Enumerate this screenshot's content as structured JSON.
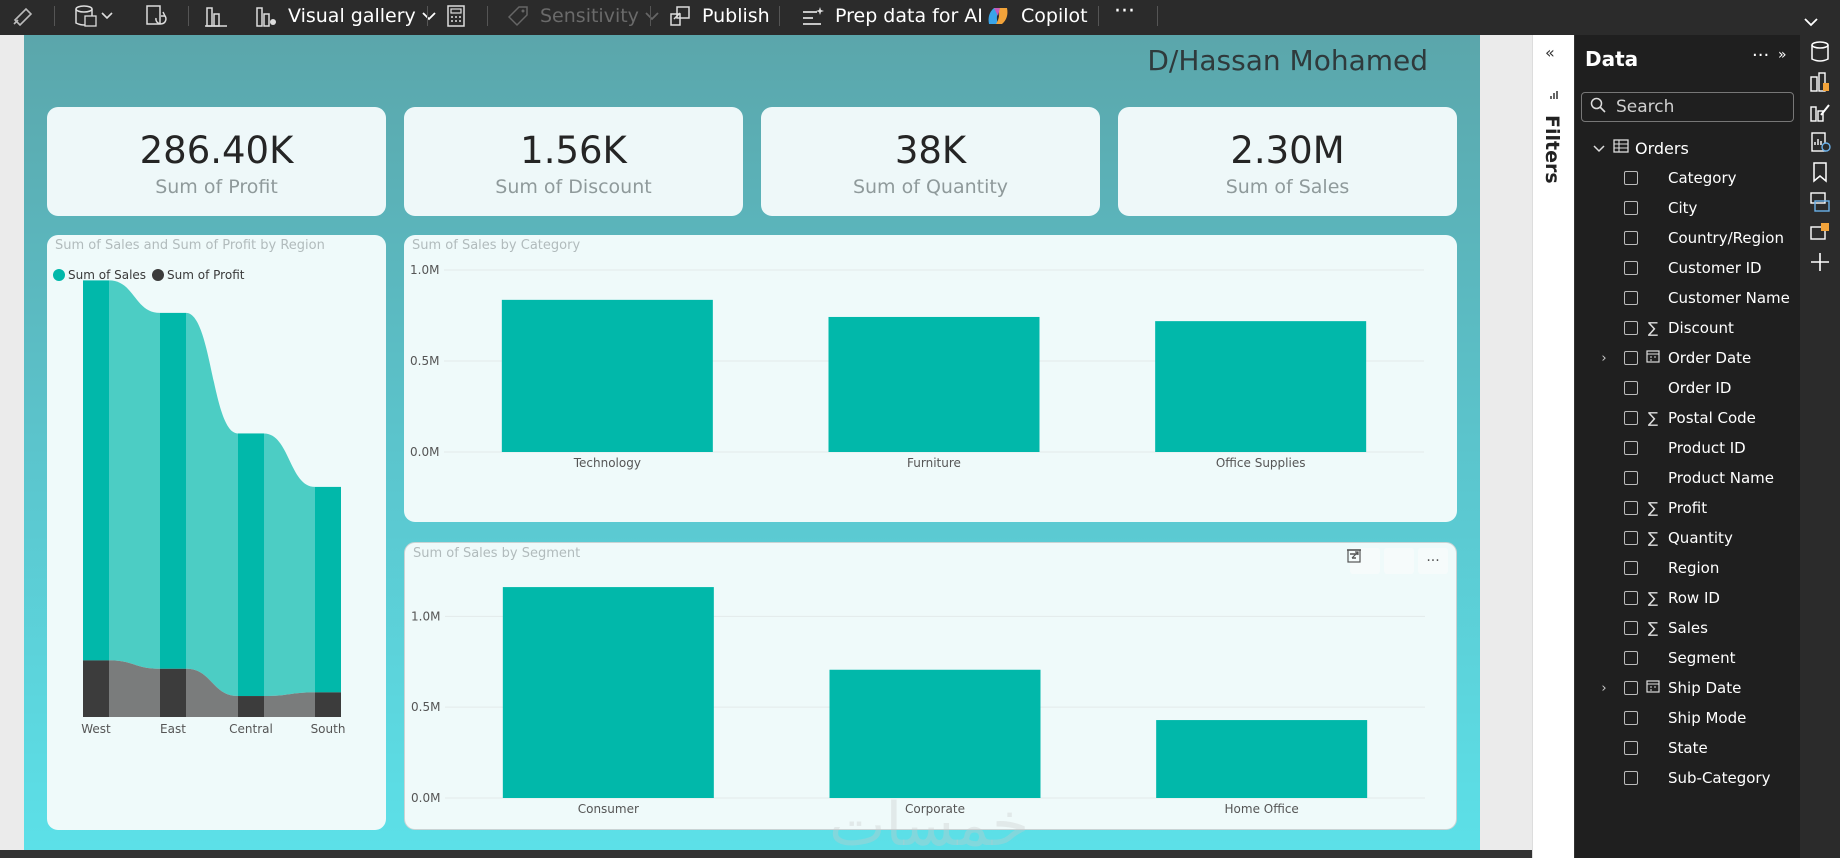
{
  "toolbar": {
    "visual_gallery_label": "Visual gallery",
    "sensitivity_label": "Sensitivity",
    "publish_label": "Publish",
    "prep_label": "Prep data for AI",
    "copilot_label": "Copilot",
    "more_label": "···"
  },
  "report": {
    "title": "D/Hassan Mohamed",
    "watermark": "خمسات",
    "cards": [
      {
        "value": "286.40K",
        "label": "Sum of Profit"
      },
      {
        "value": "1.56K",
        "label": "Sum of Discount"
      },
      {
        "value": "38K",
        "label": "Sum of Quantity"
      },
      {
        "value": "2.30M",
        "label": "Sum of Sales"
      }
    ]
  },
  "colors": {
    "sales": "#01b8aa",
    "sales_light": "#4ccdc4",
    "profit": "#3c3c3c",
    "profit_light": "#7a7c7c"
  },
  "chart_data": [
    {
      "type": "ribbon",
      "title": "Sum of Sales and Sum of Profit by Region",
      "categories": [
        "West",
        "East",
        "Central",
        "South"
      ],
      "series": [
        {
          "name": "Sum of Sales",
          "values": [
            725000,
            679000,
            501000,
            392000
          ]
        },
        {
          "name": "Sum of Profit",
          "values": [
            108000,
            92000,
            40000,
            47000
          ]
        }
      ],
      "legend": "top-left"
    },
    {
      "type": "bar",
      "title": "Sum of Sales by Category",
      "categories": [
        "Technology",
        "Furniture",
        "Office Supplies"
      ],
      "values": [
        836000,
        742000,
        719000
      ],
      "ylim": [
        0,
        1000000
      ],
      "yticks": [
        "0.0M",
        "0.5M",
        "1.0M"
      ],
      "grid": true
    },
    {
      "type": "bar",
      "title": "Sum of Sales by Segment",
      "categories": [
        "Consumer",
        "Corporate",
        "Home Office"
      ],
      "values": [
        1161000,
        706000,
        429000
      ],
      "ylim": [
        0,
        1200000
      ],
      "yticks": [
        "0.0M",
        "0.5M",
        "1.0M"
      ],
      "grid": true
    }
  ],
  "filters": {
    "label": "Filters"
  },
  "data_pane": {
    "title": "Data",
    "more": "···",
    "search_placeholder": "Search",
    "table": "Orders",
    "fields": [
      {
        "name": "Category",
        "glyph": "",
        "expandable": false
      },
      {
        "name": "City",
        "glyph": "",
        "expandable": false
      },
      {
        "name": "Country/Region",
        "glyph": "",
        "expandable": false
      },
      {
        "name": "Customer ID",
        "glyph": "",
        "expandable": false
      },
      {
        "name": "Customer Name",
        "glyph": "",
        "expandable": false
      },
      {
        "name": "Discount",
        "glyph": "∑",
        "expandable": false
      },
      {
        "name": "Order Date",
        "glyph": "calendar",
        "expandable": true
      },
      {
        "name": "Order ID",
        "glyph": "",
        "expandable": false
      },
      {
        "name": "Postal Code",
        "glyph": "∑",
        "expandable": false
      },
      {
        "name": "Product ID",
        "glyph": "",
        "expandable": false
      },
      {
        "name": "Product Name",
        "glyph": "",
        "expandable": false
      },
      {
        "name": "Profit",
        "glyph": "∑",
        "expandable": false
      },
      {
        "name": "Quantity",
        "glyph": "∑",
        "expandable": false
      },
      {
        "name": "Region",
        "glyph": "",
        "expandable": false
      },
      {
        "name": "Row ID",
        "glyph": "∑",
        "expandable": false
      },
      {
        "name": "Sales",
        "glyph": "∑",
        "expandable": false
      },
      {
        "name": "Segment",
        "glyph": "",
        "expandable": false
      },
      {
        "name": "Ship Date",
        "glyph": "calendar",
        "expandable": true
      },
      {
        "name": "Ship Mode",
        "glyph": "",
        "expandable": false
      },
      {
        "name": "State",
        "glyph": "",
        "expandable": false
      },
      {
        "name": "Sub-Category",
        "glyph": "",
        "expandable": false
      }
    ]
  }
}
